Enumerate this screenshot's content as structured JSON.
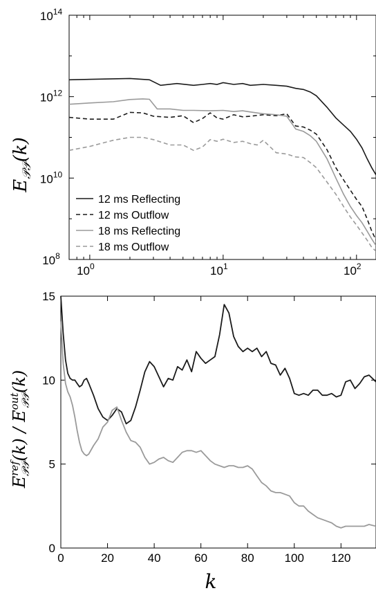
{
  "chart_data": [
    {
      "type": "line",
      "title": "",
      "xlabel": "",
      "ylabel": "E𝒫𝒫(k)",
      "xscale": "log",
      "yscale": "log",
      "xlim": [
        0.7,
        140
      ],
      "ylim": [
        100000000,
        100000000000000
      ],
      "x_ticks": [
        1,
        10,
        100
      ],
      "x_tick_labels": [
        {
          "base": "10",
          "exp": "0"
        },
        {
          "base": "10",
          "exp": "1"
        },
        {
          "base": "10",
          "exp": "2"
        }
      ],
      "y_ticks": [
        100000000,
        10000000000,
        1000000000000,
        100000000000000
      ],
      "y_tick_labels": [
        {
          "base": "10",
          "exp": "8"
        },
        {
          "base": "10",
          "exp": "10"
        },
        {
          "base": "10",
          "exp": "12"
        },
        {
          "base": "10",
          "exp": "14"
        }
      ],
      "grid": false,
      "legend_position": "bottom-left",
      "series": [
        {
          "name": "12 ms Reflecting",
          "color": "#1a1a1a",
          "dash": "solid",
          "x": [
            0.7,
            2.0,
            2.8,
            3.4,
            4.5,
            6.0,
            7.0,
            8.0,
            9.0,
            10.0,
            12.0,
            14.0,
            16.0,
            20.0,
            25.0,
            30.0,
            35.0,
            40.0,
            45.0,
            50.0,
            60.0,
            70.0,
            80.0,
            90.0,
            100.0,
            110.0,
            120.0,
            130.0,
            140.0
          ],
          "y": [
            2600000000000.0,
            2800000000000.0,
            2600000000000.0,
            1900000000000.0,
            2100000000000.0,
            1900000000000.0,
            2000000000000.0,
            2100000000000.0,
            2000000000000.0,
            2200000000000.0,
            2000000000000.0,
            2100000000000.0,
            1900000000000.0,
            2000000000000.0,
            1900000000000.0,
            1800000000000.0,
            1600000000000.0,
            1500000000000.0,
            1300000000000.0,
            1050000000000.0,
            550000000000.0,
            300000000000.0,
            200000000000.0,
            140000000000.0,
            90000000000.0,
            55000000000.0,
            30000000000.0,
            18000000000.0,
            12000000000.0
          ]
        },
        {
          "name": "12 ms Outflow",
          "color": "#1a1a1a",
          "dash": "dashed",
          "x": [
            0.7,
            1.0,
            1.5,
            2.0,
            2.5,
            3.0,
            4.0,
            5.0,
            6.0,
            7.0,
            8.0,
            9.0,
            10.0,
            12.0,
            14.0,
            16.0,
            20.0,
            25.0,
            30.0,
            35.0,
            40.0,
            45.0,
            50.0,
            60.0,
            70.0,
            80.0,
            90.0,
            100.0,
            110.0,
            120.0,
            130.0,
            140.0
          ],
          "y": [
            310000000000.0,
            280000000000.0,
            280000000000.0,
            410000000000.0,
            400000000000.0,
            330000000000.0,
            310000000000.0,
            340000000000.0,
            230000000000.0,
            290000000000.0,
            400000000000.0,
            300000000000.0,
            280000000000.0,
            360000000000.0,
            320000000000.0,
            330000000000.0,
            360000000000.0,
            340000000000.0,
            380000000000.0,
            190000000000.0,
            180000000000.0,
            150000000000.0,
            120000000000.0,
            50000000000.0,
            18000000000.0,
            9000000000.0,
            5000000000.0,
            3000000000.0,
            2000000000.0,
            1000000000.0,
            500000000.0,
            300000000.0
          ]
        },
        {
          "name": "18 ms Reflecting",
          "color": "#9a9a9a",
          "dash": "solid",
          "x": [
            0.7,
            1.0,
            1.5,
            2.0,
            2.5,
            2.8,
            3.2,
            4.0,
            5.0,
            6.0,
            8.0,
            10.0,
            12.0,
            14.0,
            16.0,
            20.0,
            25.0,
            30.0,
            35.0,
            40.0,
            45.0,
            50.0,
            60.0,
            70.0,
            80.0,
            90.0,
            100.0,
            110.0,
            120.0,
            130.0,
            140.0
          ],
          "y": [
            650000000000.0,
            700000000000.0,
            750000000000.0,
            850000000000.0,
            880000000000.0,
            860000000000.0,
            500000000000.0,
            500000000000.0,
            460000000000.0,
            460000000000.0,
            450000000000.0,
            460000000000.0,
            430000000000.0,
            450000000000.0,
            420000000000.0,
            380000000000.0,
            360000000000.0,
            330000000000.0,
            160000000000.0,
            140000000000.0,
            110000000000.0,
            80000000000.0,
            30000000000.0,
            10000000000.0,
            4000000000.0,
            2000000000.0,
            1200000000.0,
            800000000.0,
            500000000.0,
            320000000.0,
            220000000.0
          ]
        },
        {
          "name": "18 ms Outflow",
          "color": "#9a9a9a",
          "dash": "dashed",
          "x": [
            0.7,
            1.0,
            1.5,
            2.0,
            2.5,
            3.0,
            4.0,
            5.0,
            6.0,
            7.0,
            8.0,
            9.0,
            10.0,
            12.0,
            14.0,
            16.0,
            18.0,
            20.0,
            25.0,
            30.0,
            35.0,
            40.0,
            45.0,
            50.0,
            60.0,
            70.0,
            80.0,
            90.0,
            100.0,
            110.0,
            120.0,
            130.0,
            140.0
          ],
          "y": [
            48000000000.0,
            60000000000.0,
            85000000000.0,
            100000000000.0,
            100000000000.0,
            88000000000.0,
            65000000000.0,
            65000000000.0,
            48000000000.0,
            58000000000.0,
            88000000000.0,
            80000000000.0,
            90000000000.0,
            75000000000.0,
            80000000000.0,
            70000000000.0,
            65000000000.0,
            85000000000.0,
            42000000000.0,
            39000000000.0,
            33000000000.0,
            32000000000.0,
            24000000000.0,
            18000000000.0,
            8000000000.0,
            4000000000.0,
            2000000000.0,
            1100000000.0,
            700000000.0,
            450000000.0,
            300000000.0,
            200000000.0,
            160000000.0
          ]
        }
      ]
    },
    {
      "type": "line",
      "title": "",
      "xlabel": "k",
      "ylabel": "E𝒫𝒫ʳᵉᶠ(k) / E𝒫𝒫ᵒᵘᵗ(k)",
      "xlim": [
        0,
        135
      ],
      "ylim": [
        0,
        15
      ],
      "x_ticks": [
        0,
        20,
        40,
        60,
        80,
        100,
        120
      ],
      "y_ticks": [
        0,
        5,
        10,
        15
      ],
      "grid": false,
      "series": [
        {
          "color": "#1a1a1a",
          "x": [
            0,
            1,
            2,
            3,
            4,
            5,
            6,
            7,
            8,
            9,
            10,
            11,
            12,
            14,
            16,
            18,
            20,
            22,
            24,
            26,
            28,
            30,
            32,
            34,
            36,
            38,
            40,
            42,
            44,
            46,
            48,
            50,
            52,
            54,
            56,
            58,
            60,
            62,
            64,
            66,
            68,
            70,
            72,
            74,
            76,
            78,
            80,
            82,
            84,
            86,
            88,
            90,
            92,
            94,
            96,
            98,
            100,
            102,
            104,
            106,
            108,
            110,
            112,
            114,
            116,
            118,
            120,
            122,
            124,
            126,
            128,
            130,
            132,
            135
          ],
          "y": [
            15,
            12.8,
            11.2,
            10.4,
            10.1,
            10.0,
            10.0,
            9.8,
            9.6,
            9.7,
            10.0,
            10.1,
            9.8,
            9.1,
            8.3,
            7.8,
            7.6,
            7.9,
            8.3,
            8.1,
            7.4,
            7.6,
            8.4,
            9.4,
            10.5,
            11.1,
            10.8,
            10.2,
            9.6,
            10.1,
            10.0,
            10.8,
            10.6,
            11.2,
            10.5,
            11.7,
            11.3,
            11.0,
            11.2,
            11.4,
            12.7,
            14.5,
            14.0,
            12.6,
            12.0,
            11.7,
            11.9,
            11.7,
            11.9,
            11.4,
            11.7,
            11.0,
            10.9,
            10.3,
            10.7,
            10.1,
            9.2,
            9.1,
            9.2,
            9.1,
            9.4,
            9.4,
            9.1,
            9.1,
            9.2,
            9.0,
            9.1,
            9.9,
            10.0,
            9.5,
            9.8,
            10.2,
            10.3,
            9.9
          ]
        },
        {
          "color": "#9a9a9a",
          "x": [
            0,
            1,
            2,
            3,
            4,
            5,
            6,
            7,
            8,
            9,
            10,
            11,
            12,
            14,
            16,
            18,
            20,
            22,
            24,
            26,
            28,
            30,
            32,
            34,
            36,
            38,
            40,
            42,
            44,
            46,
            48,
            50,
            52,
            54,
            56,
            58,
            60,
            62,
            64,
            66,
            68,
            70,
            72,
            74,
            76,
            78,
            80,
            82,
            84,
            86,
            88,
            90,
            92,
            94,
            96,
            98,
            100,
            102,
            104,
            106,
            108,
            110,
            112,
            114,
            116,
            118,
            120,
            122,
            124,
            126,
            128,
            130,
            132,
            135
          ],
          "y": [
            13.5,
            11.0,
            9.8,
            9.3,
            9.0,
            8.5,
            7.8,
            7.0,
            6.3,
            5.8,
            5.6,
            5.5,
            5.6,
            6.1,
            6.5,
            7.2,
            7.5,
            8.2,
            8.4,
            7.6,
            6.9,
            6.4,
            6.3,
            6.0,
            5.4,
            5.0,
            5.1,
            5.3,
            5.4,
            5.2,
            5.1,
            5.4,
            5.7,
            5.8,
            5.8,
            5.7,
            5.8,
            5.5,
            5.2,
            5.0,
            4.9,
            4.8,
            4.9,
            4.9,
            4.8,
            4.8,
            4.9,
            4.7,
            4.3,
            3.9,
            3.7,
            3.4,
            3.3,
            3.3,
            3.2,
            3.1,
            2.7,
            2.5,
            2.5,
            2.2,
            2.0,
            1.8,
            1.7,
            1.6,
            1.5,
            1.3,
            1.2,
            1.3,
            1.3,
            1.3,
            1.3,
            1.3,
            1.4,
            1.3
          ]
        }
      ]
    }
  ]
}
